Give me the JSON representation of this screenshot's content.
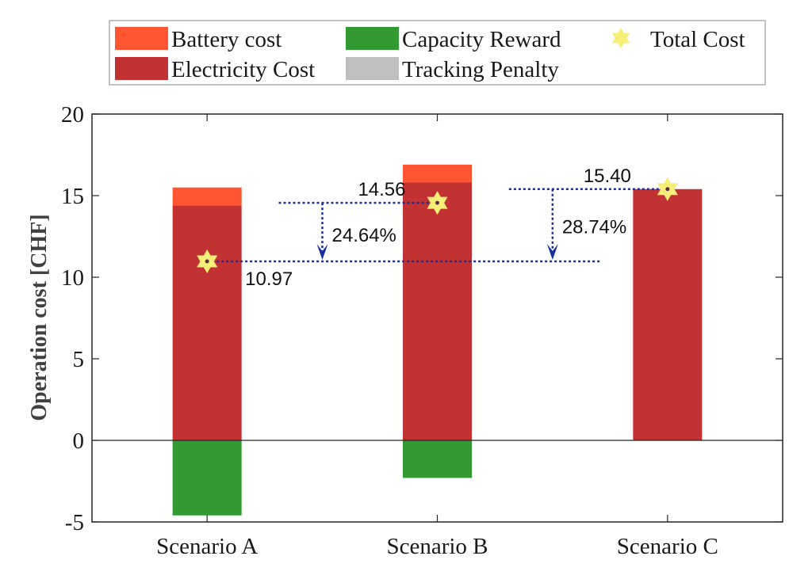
{
  "chart_data": {
    "type": "bar",
    "stacked": true,
    "categories": [
      "Scenario A",
      "Scenario B",
      "Scenario C"
    ],
    "ylabel": "Operation cost [CHF]",
    "ylim": [
      -5,
      20
    ],
    "yticks": [
      -5,
      0,
      5,
      10,
      15,
      20
    ],
    "grid": false,
    "legend_position": "top",
    "series": [
      {
        "name": "Battery cost",
        "color": "#ff5533",
        "values": [
          1.1,
          1.1,
          0.0
        ]
      },
      {
        "name": "Electricity Cost",
        "color": "#c23232",
        "values": [
          14.4,
          15.8,
          15.4
        ]
      },
      {
        "name": "Capacity Reward",
        "color": "#339933",
        "values": [
          -4.6,
          -2.3,
          0.0
        ]
      },
      {
        "name": "Tracking Penalty",
        "color": "#bfbfbf",
        "values": [
          0.0,
          0.0,
          0.0
        ]
      }
    ],
    "total_cost": {
      "name": "Total Cost",
      "color": "#f5ef78",
      "values": [
        10.97,
        14.56,
        15.4
      ]
    },
    "annotations": {
      "total_labels": [
        "10.97",
        "14.56",
        "15.40"
      ],
      "reductions": [
        {
          "label": "24.64%",
          "from_scenario": "Scenario B",
          "to_scenario": "Scenario A"
        },
        {
          "label": "28.74%",
          "from_scenario": "Scenario C",
          "to_scenario": "Scenario A"
        }
      ],
      "arrow_color": "#1a2f9e"
    }
  }
}
